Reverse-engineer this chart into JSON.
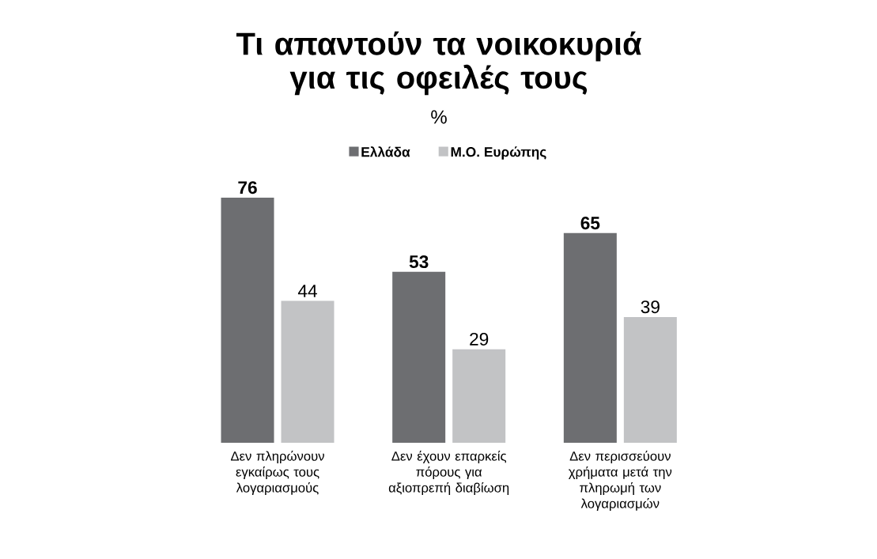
{
  "chart_data": {
    "type": "bar",
    "title": "Τι απαντούν τα νοικοκυριά για τις οφειλές τους",
    "subtitle": "%",
    "categories": [
      "Δεν πληρώνουν εγκαίρως τους λογαριασμούς",
      "Δεν έχουν επαρκείς πόρους για αξιοπρεπή διαβίωση",
      "Δεν περισσεύουν χρήματα μετά την πληρωμή των λογαριασμών"
    ],
    "series": [
      {
        "name": "Ελλάδα",
        "color": "#6d6e71",
        "values": [
          76,
          53,
          65
        ]
      },
      {
        "name": "Μ.Ο. Ευρώπης",
        "color": "#c2c3c5",
        "values": [
          44,
          29,
          39
        ]
      }
    ],
    "data_labels": true,
    "legend": "top"
  }
}
